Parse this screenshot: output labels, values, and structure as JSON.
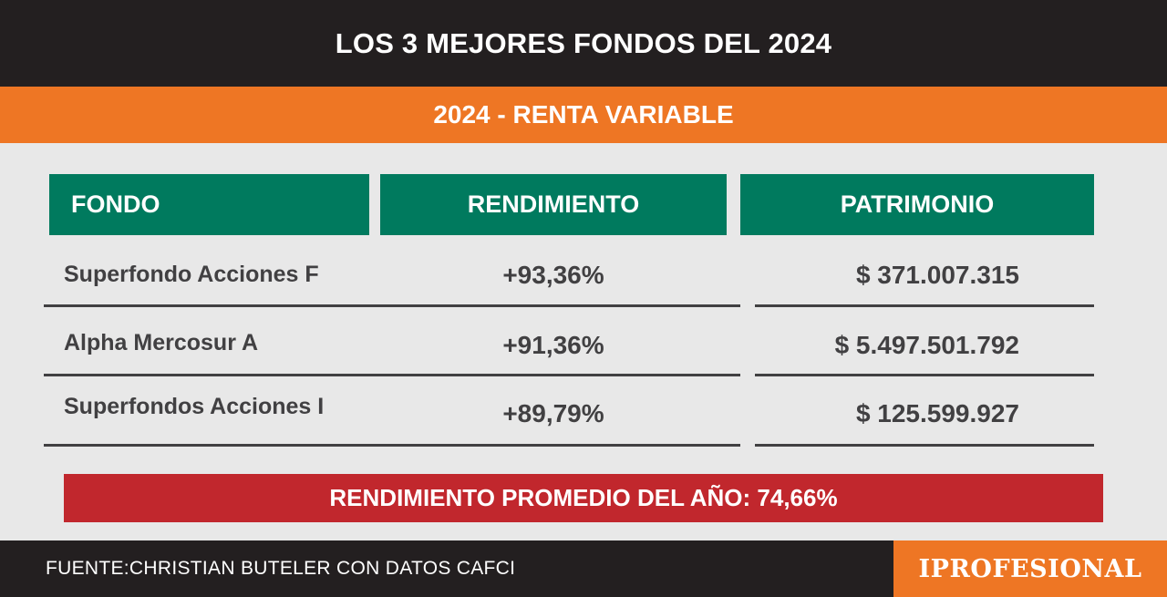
{
  "header": {
    "title": "LOS 3 MEJORES FONDOS DEL 2024",
    "subtitle": "2024 - RENTA VARIABLE"
  },
  "table": {
    "columns": [
      "FONDO",
      "RENDIMIENTO",
      "PATRIMONIO"
    ],
    "rows": [
      {
        "fondo": "Superfondo Acciones F",
        "rendimiento": "+93,36%",
        "patrimonio": "$ 371.007.315"
      },
      {
        "fondo": "Alpha Mercosur A",
        "rendimiento": "+91,36%",
        "patrimonio": "$ 5.497.501.792"
      },
      {
        "fondo": "Superfondos Acciones I",
        "rendimiento": "+89,79%",
        "patrimonio": "$ 125.599.927"
      }
    ]
  },
  "summary": {
    "average": "RENDIMIENTO PROMEDIO DEL AÑO: 74,66%"
  },
  "footer": {
    "source": "FUENTE:CHRISTIAN BUTELER CON DATOS CAFCI",
    "logo": "IPROFESIONAL"
  },
  "colors": {
    "dark": "#231f20",
    "orange": "#ee7624",
    "green": "#007a5e",
    "red": "#c1272d",
    "text": "#414042",
    "background": "#e8e8e8"
  }
}
